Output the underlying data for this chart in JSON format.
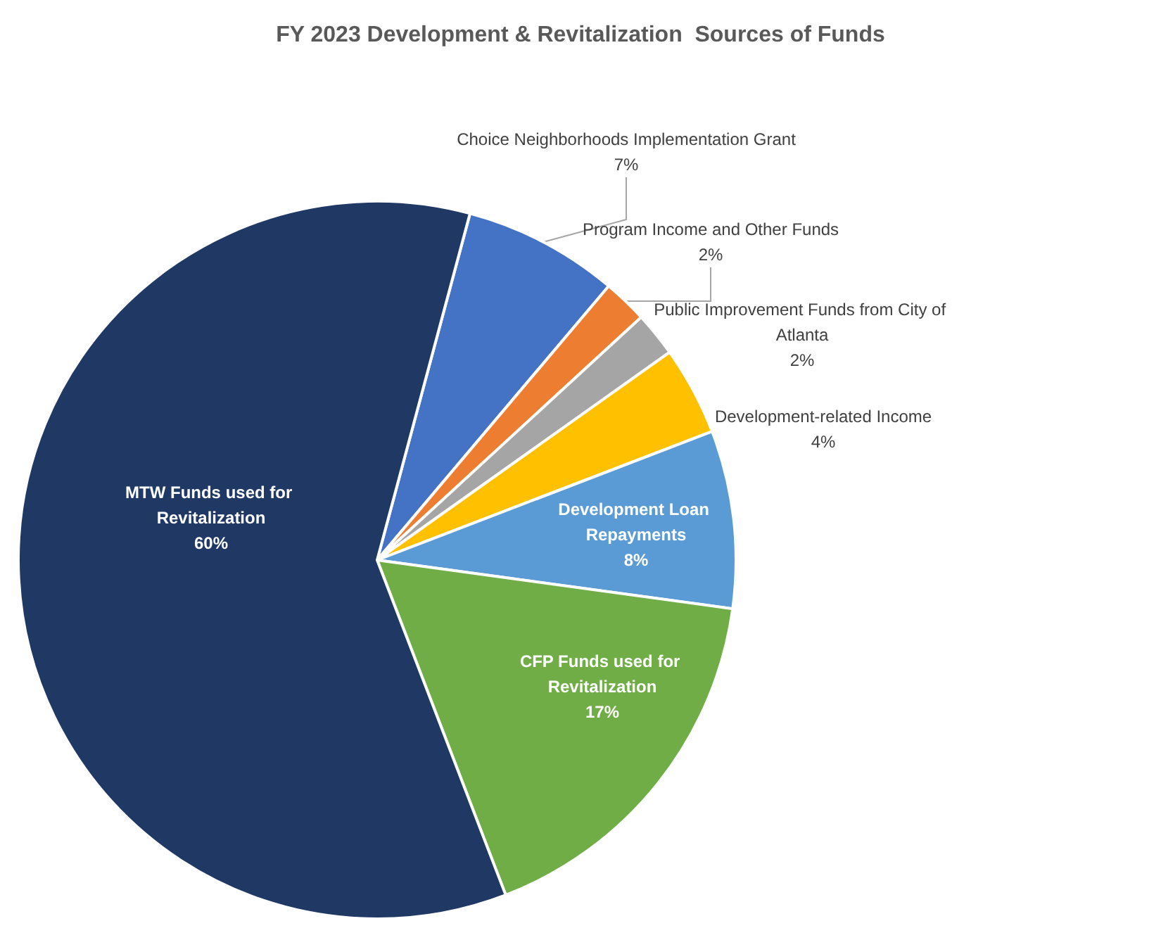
{
  "chart_data": {
    "type": "pie",
    "title": "FY 2023 Development & Revitalization  Sources of Funds",
    "categories": [
      "Choice Neighborhoods Implementation Grant",
      "Program Income and Other Funds",
      "Public Improvement Funds from City of Atlanta",
      "Development-related Income",
      "Development Loan Repayments",
      "CFP Funds used for Revitalization",
      "MTW Funds used for Revitalization"
    ],
    "values": [
      7,
      2,
      2,
      4,
      8,
      17,
      60
    ],
    "value_labels": [
      "7%",
      "2%",
      "2%",
      "4%",
      "8%",
      "17%",
      "60%"
    ],
    "colors": [
      "#4472c4",
      "#ed7d31",
      "#a5a5a5",
      "#ffc000",
      "#5b9bd5",
      "#70ad47",
      "#203864"
    ],
    "legend": false
  }
}
